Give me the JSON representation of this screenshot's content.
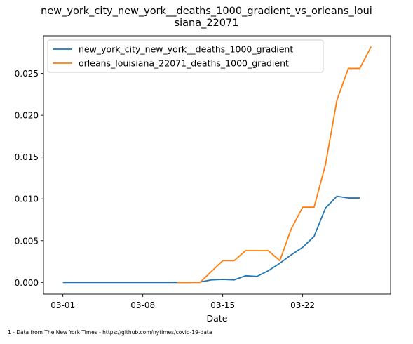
{
  "chart_data": {
    "type": "line",
    "title_line1": "new_york_city_new_york__deaths_1000_gradient_vs_orleans_loui",
    "title_line2": "siana_22071",
    "xlabel": "Date",
    "ylabel": "",
    "x_tick_labels": [
      "03-01",
      "03-08",
      "03-15",
      "03-22"
    ],
    "x_tick_days": [
      0,
      7,
      14,
      21
    ],
    "xlim": [
      -1.7,
      28.7
    ],
    "y_ticks": [
      0.0,
      0.005,
      0.01,
      0.015,
      0.02,
      0.025
    ],
    "y_tick_labels": [
      "0.000",
      "0.005",
      "0.010",
      "0.015",
      "0.020",
      "0.025"
    ],
    "ylim": [
      -0.0014,
      0.0295
    ],
    "grid": false,
    "legend_position": "top-left",
    "x": [
      "03-01",
      "03-02",
      "03-03",
      "03-04",
      "03-05",
      "03-06",
      "03-07",
      "03-08",
      "03-09",
      "03-10",
      "03-11",
      "03-12",
      "03-13",
      "03-14",
      "03-15",
      "03-16",
      "03-17",
      "03-18",
      "03-19",
      "03-20",
      "03-21",
      "03-22",
      "03-23",
      "03-24",
      "03-25",
      "03-26",
      "03-27",
      "03-28"
    ],
    "series": [
      {
        "name": "new_york_city_new_york__deaths_1000_gradient",
        "color": "#1f77b4",
        "values": [
          0,
          0,
          0,
          0,
          0,
          0,
          0,
          0,
          0,
          0,
          0,
          0,
          5e-05,
          0.0003,
          0.00037,
          0.0003,
          0.0008,
          0.00072,
          0.0014,
          0.0023,
          0.0033,
          0.0042,
          0.0055,
          0.0089,
          0.0103,
          0.0101,
          0.0101,
          null
        ]
      },
      {
        "name": "orleans_louisiana_22071_deaths_1000_gradient",
        "color": "#ff7f0e",
        "values": [
          null,
          null,
          null,
          null,
          null,
          null,
          null,
          null,
          null,
          null,
          0,
          0,
          0,
          0.0013,
          0.0026,
          0.0026,
          0.0038,
          0.0038,
          0.0038,
          0.0026,
          0.0064,
          0.009,
          0.009,
          0.0141,
          0.0218,
          0.0256,
          0.0256,
          0.0282
        ]
      }
    ]
  },
  "footnote": "1 - Data from The New York Times - https://github.com/nytimes/covid-19-data"
}
